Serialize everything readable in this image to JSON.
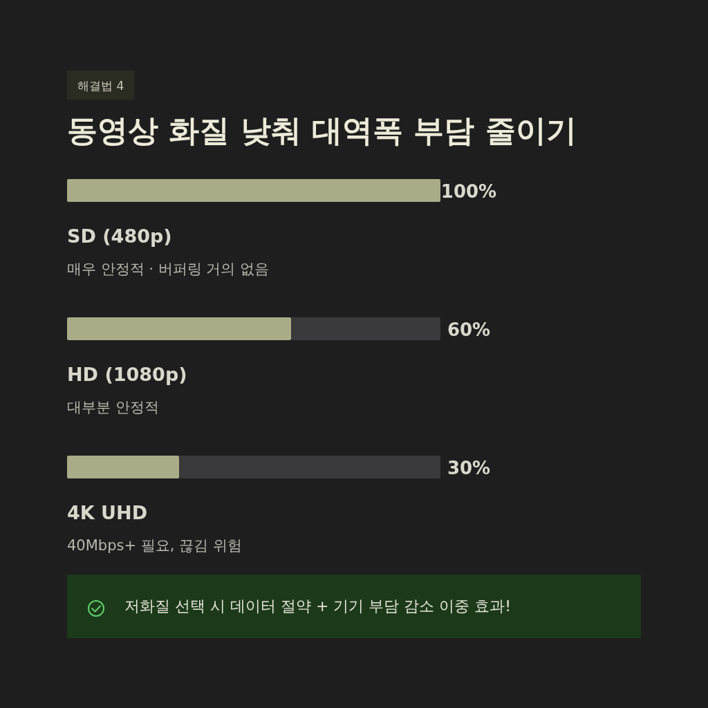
{
  "chart_data": {
    "type": "bar",
    "orientation": "horizontal",
    "title": "동영상 화질 낮춰 대역폭 부담 줄이기",
    "subtitle": "해결법 4",
    "categories": [
      "SD (480p)",
      "HD (1080p)",
      "4K UHD"
    ],
    "values": [
      100,
      60,
      30
    ],
    "color": "#a8ad88",
    "value_labels": [
      "100%",
      "60%",
      "30%"
    ],
    "xlim": [
      0,
      100
    ],
    "tick_labels": false,
    "annotations": [
      "매우 안정적 · 버퍼링 거의 없음",
      "대부분 안정적",
      "40Mbps+ 필요, 끊김 위험",
      "저화질 선택 시 데이터 절약 + 기기 부담 감소 이중 효과!"
    ]
  }
}
